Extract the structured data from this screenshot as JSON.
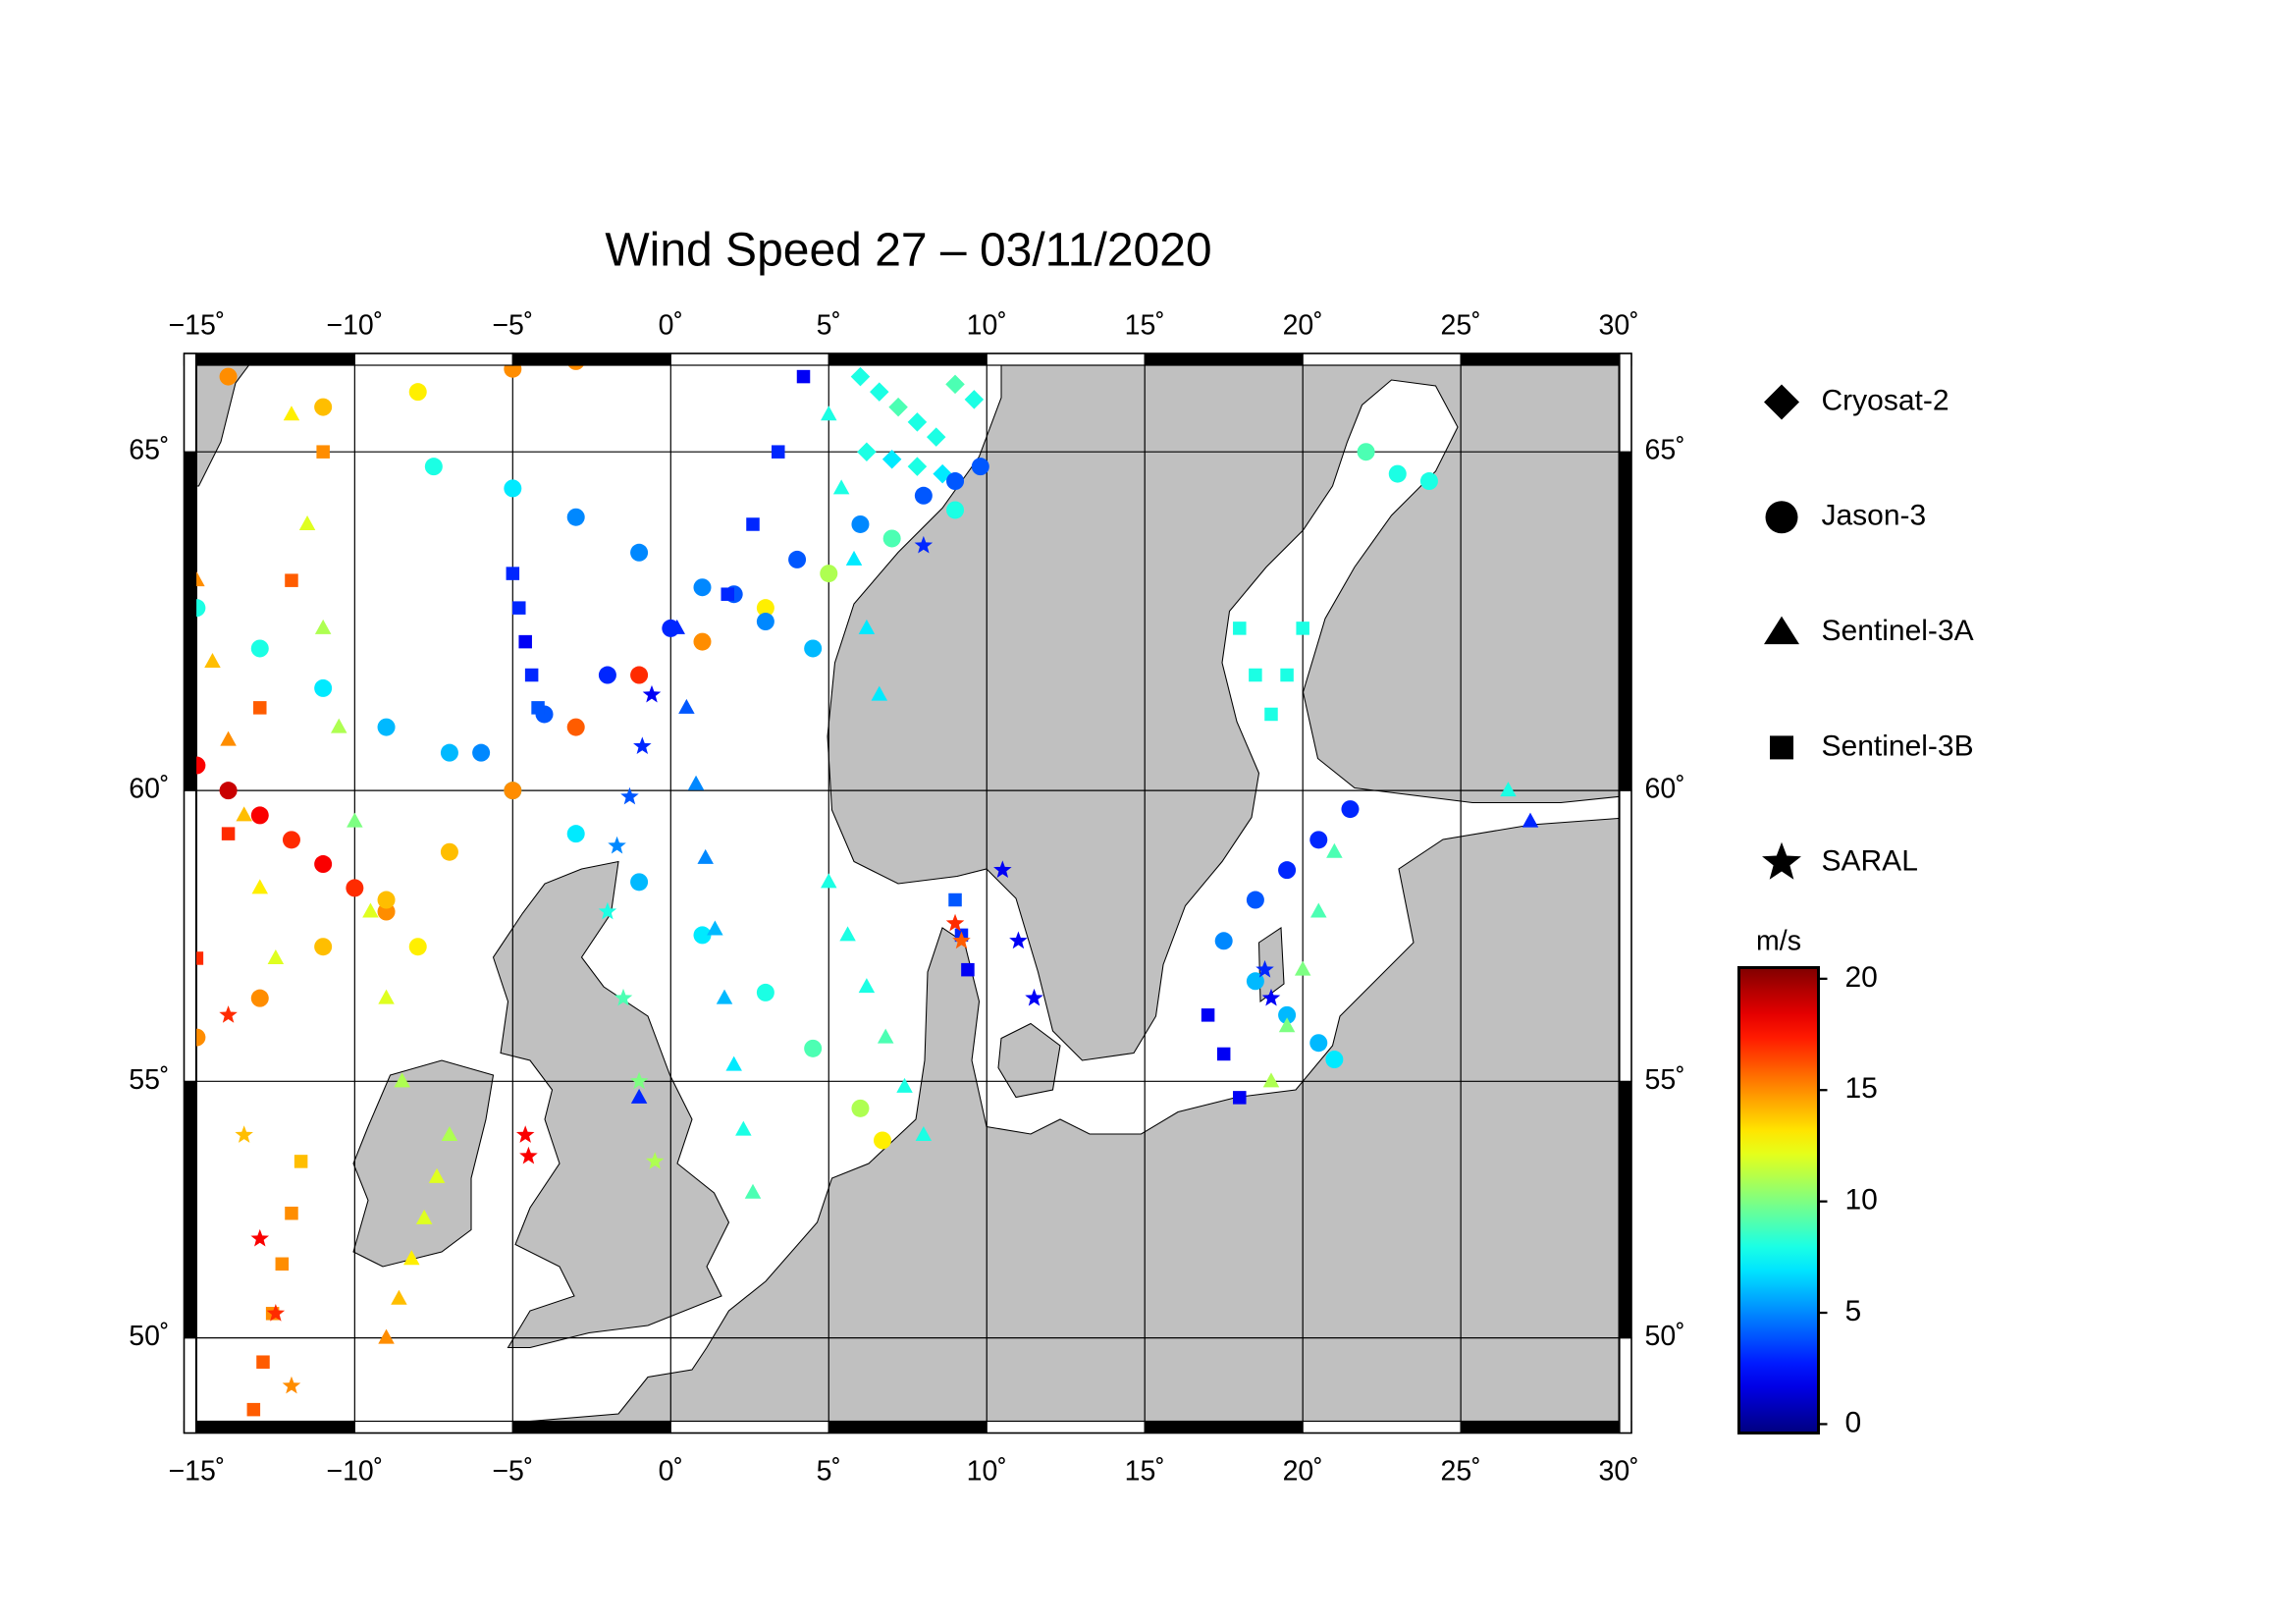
{
  "chart_data": {
    "type": "map",
    "title": "Wind Speed 27 – 03/11/2020",
    "projection": "mercator",
    "xlim": [
      -15.4,
      30.4
    ],
    "ylim": [
      48.0,
      66.3
    ],
    "xticks": [
      {
        "value": -15,
        "label": "−15˚"
      },
      {
        "value": -10,
        "label": "−10˚"
      },
      {
        "value": -5,
        "label": "−5˚"
      },
      {
        "value": 0,
        "label": "0˚"
      },
      {
        "value": 5,
        "label": "5˚"
      },
      {
        "value": 10,
        "label": "10˚"
      },
      {
        "value": 15,
        "label": "15˚"
      },
      {
        "value": 20,
        "label": "20˚"
      },
      {
        "value": 25,
        "label": "25˚"
      },
      {
        "value": 30,
        "label": "30˚"
      }
    ],
    "yticks": [
      {
        "value": 50,
        "label": "50˚"
      },
      {
        "value": 55,
        "label": "55˚"
      },
      {
        "value": 60,
        "label": "60˚"
      },
      {
        "value": 65,
        "label": "65˚"
      }
    ],
    "grid": true,
    "land_color": "#c0c0c0",
    "colorbar": {
      "label": "m/s",
      "colormap": "jet",
      "clim": [
        -0.4,
        20.5
      ],
      "ticks": [
        0,
        5,
        10,
        15,
        20
      ]
    },
    "series": [
      {
        "name": "Cryosat-2",
        "marker": "diamond",
        "lon": [
          6,
          6.6,
          7.2,
          7.8,
          8.4,
          9,
          9.6,
          6.2,
          7,
          7.8,
          8.6
        ],
        "lat": [
          66,
          65.8,
          65.6,
          65.4,
          65.2,
          65.9,
          65.7,
          65,
          64.9,
          64.8,
          64.7
        ],
        "values": [
          8,
          8,
          9,
          8,
          8,
          9,
          8,
          8,
          7,
          8,
          7
        ]
      },
      {
        "name": "Jason-3",
        "marker": "circle",
        "lon": [
          -15,
          -13,
          -11,
          -9,
          -7,
          -5,
          -3,
          -1,
          1,
          3,
          4.5,
          6,
          6.7,
          -6,
          -4,
          -2,
          0,
          2,
          4,
          6,
          8,
          9,
          9.8,
          -15,
          -14,
          -13,
          -12,
          -11,
          -10,
          -9,
          -8,
          -15,
          -13,
          -11,
          -9,
          -7,
          -5,
          -3,
          -1,
          1,
          3,
          5,
          7,
          9,
          -7.5,
          -5,
          -3,
          -1,
          1,
          3,
          4.5,
          -14,
          -11,
          -8,
          -5,
          -3,
          21.5,
          20.5,
          19.5,
          18.5,
          17.5,
          18.5,
          19.5,
          20.5,
          21,
          22,
          23,
          24
        ],
        "lat": [
          62.8,
          62.2,
          61.6,
          61,
          60.6,
          60,
          59.3,
          58.5,
          57.6,
          56.6,
          55.6,
          54.5,
          53.9,
          60.6,
          61.2,
          61.8,
          62.5,
          63,
          63.5,
          64,
          64.4,
          64.6,
          64.8,
          60.4,
          60,
          59.6,
          59.2,
          58.8,
          58.4,
          58,
          57.4,
          55.8,
          56.5,
          57.4,
          58.2,
          59,
          60,
          61,
          61.8,
          62.3,
          62.8,
          63.3,
          63.8,
          64.2,
          64.8,
          64.5,
          64.1,
          63.6,
          63.1,
          62.6,
          62.2,
          66,
          65.6,
          65.8,
          66.1,
          66.2,
          59.7,
          59.2,
          58.7,
          58.2,
          57.5,
          56.8,
          56.2,
          55.7,
          55.4,
          65,
          64.7,
          64.6
        ],
        "values": [
          8,
          8,
          7,
          6,
          6,
          7,
          7,
          6,
          7,
          8,
          9,
          11,
          13,
          5,
          4,
          3,
          3,
          4,
          4,
          5,
          4,
          4,
          4,
          18,
          19,
          18,
          17,
          18,
          17,
          15,
          13,
          15,
          15,
          14,
          14,
          14,
          15,
          16,
          17,
          15,
          13,
          11,
          9,
          8,
          8,
          7,
          5,
          5,
          5,
          5,
          6,
          15,
          14,
          13,
          15,
          15,
          3,
          3,
          3,
          4,
          5,
          6,
          6,
          6,
          7,
          9,
          8,
          8
        ]
      },
      {
        "name": "Sentinel-3A",
        "marker": "triangle",
        "lon": [
          0.2,
          0.5,
          0.8,
          1.1,
          1.4,
          1.7,
          2,
          2.3,
          2.6,
          5,
          5.6,
          6.2,
          6.8,
          7.4,
          8,
          -12,
          -11.5,
          -11,
          -10.5,
          -10,
          -9.5,
          -9,
          -8.5,
          19,
          19.5,
          20,
          20.5,
          21,
          5,
          5.4,
          5.8,
          6.2,
          6.6,
          27.2,
          26.5,
          -1,
          -15,
          -14.5,
          -14,
          -13.5,
          -13,
          -12.5,
          -9,
          -8.6,
          -8.2,
          -7.8,
          -7.4,
          -7
        ],
        "lat": [
          62.5,
          61.3,
          60.1,
          58.9,
          57.7,
          56.5,
          55.3,
          54.1,
          52.9,
          58.5,
          57.6,
          56.7,
          55.8,
          54.9,
          54,
          65.5,
          64,
          62.5,
          61,
          59.5,
          58,
          56.5,
          55,
          55,
          56,
          57,
          58,
          59,
          65.5,
          64.5,
          63.5,
          62.5,
          61.5,
          59.5,
          60,
          54.7,
          63.2,
          62,
          60.8,
          59.6,
          58.4,
          57.2,
          50,
          50.8,
          51.6,
          52.4,
          53.2,
          54
        ],
        "values": [
          3,
          4,
          5,
          5,
          6,
          6,
          7,
          8,
          9,
          8,
          8,
          8,
          9,
          8,
          8,
          13,
          12,
          11,
          11,
          10,
          12,
          12,
          11,
          11,
          10,
          10,
          9,
          9,
          8,
          8,
          7,
          7,
          7,
          3,
          8,
          3,
          15,
          14,
          15,
          14,
          13,
          12,
          15,
          14,
          13,
          12,
          12,
          11
        ]
      },
      {
        "name": "Sentinel-3B",
        "marker": "square",
        "lon": [
          -15,
          -14,
          -13,
          -12,
          -11,
          4.2,
          3.4,
          2.6,
          1.8,
          17,
          17.5,
          18,
          18,
          18.5,
          19,
          19.5,
          20,
          9,
          9.2,
          9.4,
          -13.2,
          -12.9,
          -12.6,
          -12.3,
          -12,
          -11.7,
          -5,
          -4.8,
          -4.6,
          -4.4,
          -4.2
        ],
        "lat": [
          57.2,
          59.3,
          61.3,
          63.2,
          65,
          66,
          65,
          64,
          63,
          56.2,
          55.5,
          54.7,
          62.5,
          61.8,
          61.2,
          61.8,
          62.5,
          58.2,
          57.6,
          57,
          48.5,
          49.5,
          50.5,
          51.5,
          52.5,
          53.5,
          63.3,
          62.8,
          62.3,
          61.8,
          61.3
        ],
        "values": [
          17,
          17,
          16,
          16,
          15,
          2,
          3,
          3,
          3,
          2,
          2,
          2,
          8,
          8,
          8,
          8,
          8,
          4,
          3,
          2,
          16,
          16,
          15,
          15,
          15,
          14,
          3,
          3,
          2,
          3,
          4
        ]
      },
      {
        "name": "SARAL",
        "marker": "star",
        "lon": [
          -14,
          -13.5,
          -13,
          -12.5,
          -12,
          -0.6,
          -0.9,
          -1.3,
          -1.7,
          8,
          -4.6,
          -4.5,
          9,
          9.2,
          10.5,
          11,
          11.5,
          18.8,
          19,
          -2,
          -1.5,
          -1,
          -0.5
        ],
        "lat": [
          56.2,
          54,
          52,
          50.5,
          49,
          61.5,
          60.7,
          59.9,
          59.1,
          63.7,
          54,
          53.6,
          57.8,
          57.5,
          58.7,
          57.5,
          56.5,
          57,
          56.5,
          58,
          56.5,
          55,
          53.5
        ],
        "values": [
          17,
          14,
          18,
          17,
          15,
          2,
          3,
          4,
          5,
          3,
          18,
          18,
          17,
          16,
          2,
          2,
          2,
          3,
          2,
          8,
          9,
          10,
          11
        ]
      }
    ]
  }
}
